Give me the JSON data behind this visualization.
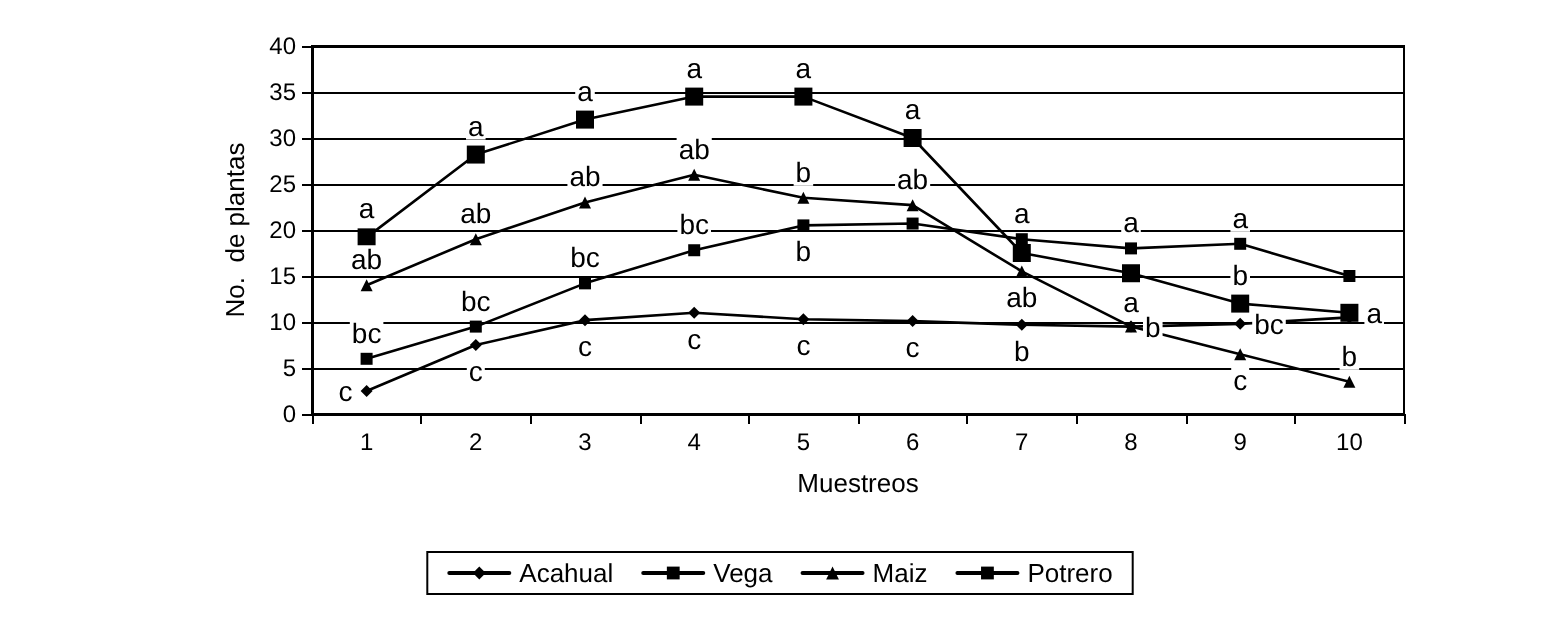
{
  "chart_data": {
    "type": "line",
    "xlabel": "Muestreos",
    "ylabel": "No.  de plantas",
    "categories": [
      "1",
      "2",
      "3",
      "4",
      "5",
      "6",
      "7",
      "8",
      "9",
      "10"
    ],
    "ylim": [
      0,
      40
    ],
    "yticks": [
      0,
      5,
      10,
      15,
      20,
      25,
      30,
      35,
      40
    ],
    "grid": "y",
    "legend": "bottom",
    "series": [
      {
        "name": "Acahual",
        "color": "#000000",
        "marker": "diamond",
        "values": [
          2.5,
          7.5,
          10.2,
          11,
          10.3,
          10.1,
          9.7,
          9.5,
          9.8,
          10.5
        ],
        "value_labels": [
          "c",
          "c",
          "c",
          "c",
          "c",
          "c",
          "b",
          null,
          "bc",
          null
        ]
      },
      {
        "name": "Vega",
        "color": "#000000",
        "marker": "square",
        "values": [
          6,
          9.5,
          14.2,
          17.8,
          20.5,
          20.7,
          19,
          18,
          18.5,
          15
        ],
        "value_labels": [
          "bc",
          "bc",
          "bc",
          "bc",
          "b",
          null,
          "a",
          "a",
          "a",
          null
        ]
      },
      {
        "name": "Maiz",
        "color": "#000000",
        "marker": "triangle",
        "values": [
          14,
          19,
          23,
          26,
          23.5,
          22.7,
          15.5,
          9.5,
          6.5,
          3.5
        ],
        "value_labels": [
          "ab",
          "ab",
          "ab",
          "ab",
          "b",
          "ab",
          "ab",
          "b",
          "c",
          "b"
        ]
      },
      {
        "name": "Potrero",
        "color": "#000000",
        "marker": "square",
        "values": [
          19.2,
          28.2,
          32,
          34.5,
          34.5,
          30,
          17.5,
          15.3,
          12,
          11
        ],
        "value_labels": [
          "a",
          "a",
          "a",
          "a",
          "a",
          "a",
          null,
          "a",
          "b",
          "a"
        ]
      }
    ]
  }
}
